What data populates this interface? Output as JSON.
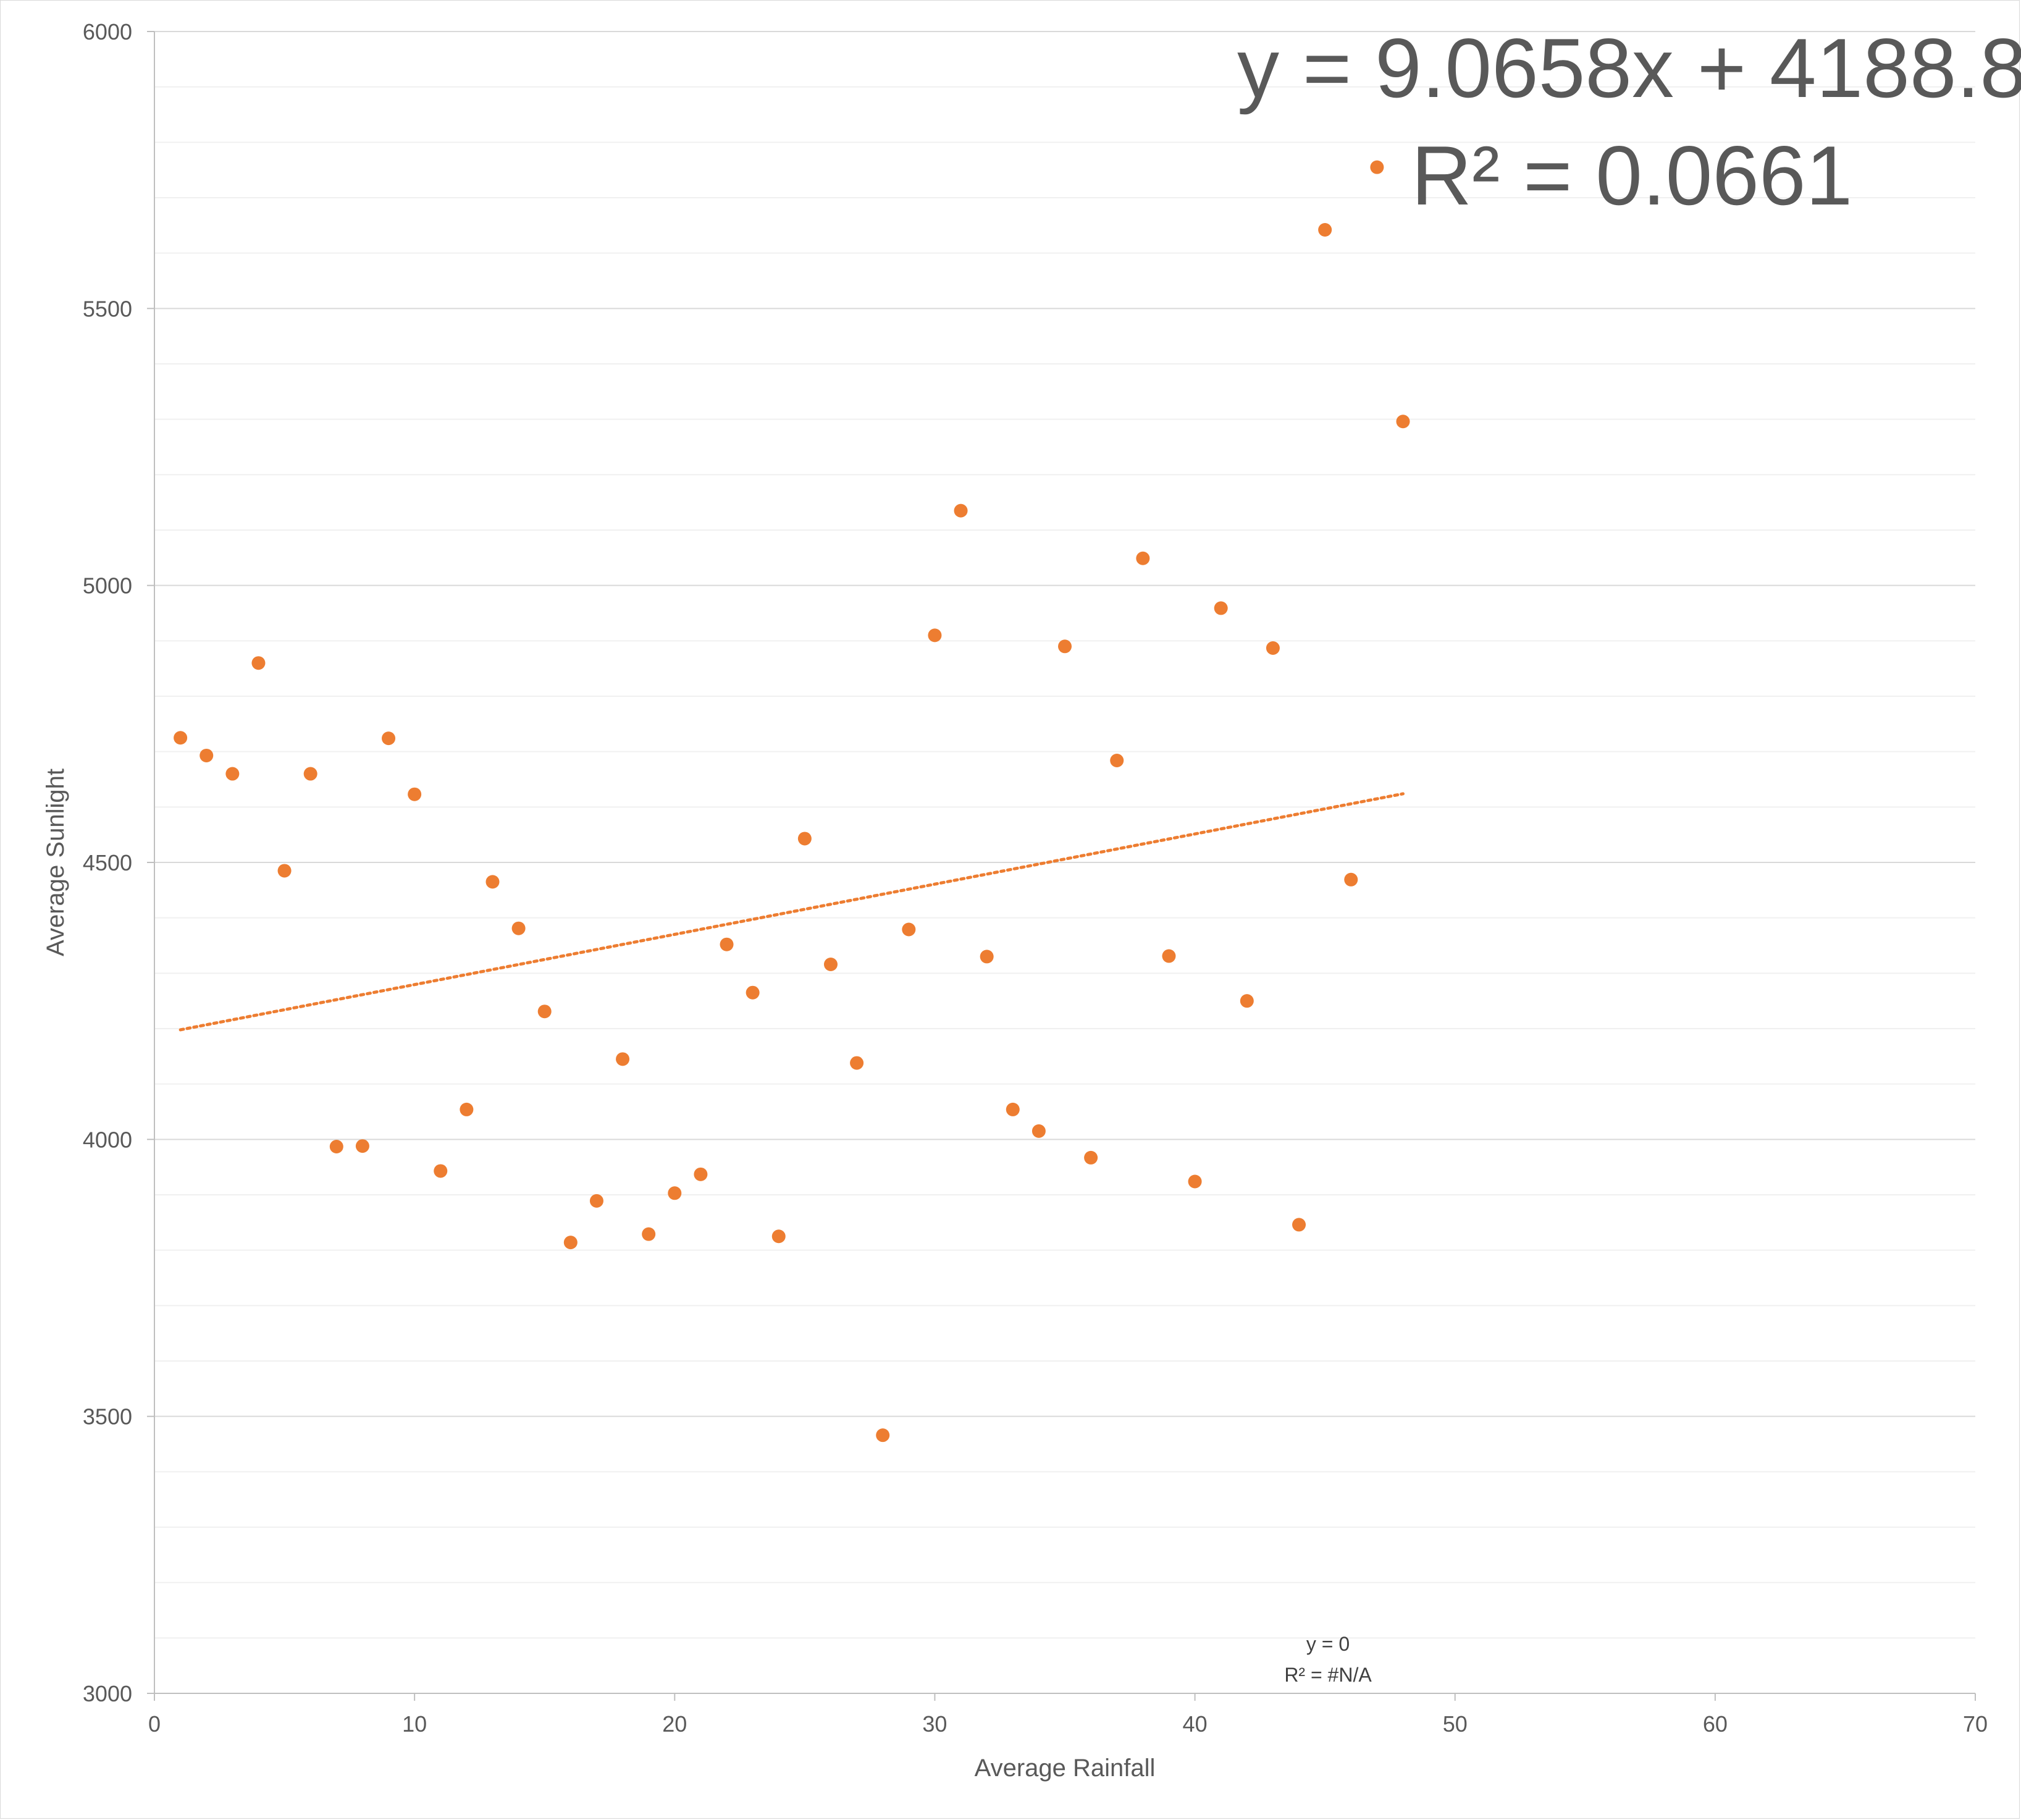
{
  "chart_data": {
    "type": "scatter",
    "title": "",
    "xlabel": "Average Rainfall",
    "ylabel": "Average Sunlight",
    "xlim": [
      0,
      70
    ],
    "ylim": [
      3000,
      6000
    ],
    "x_ticks": [
      "0",
      "10",
      "20",
      "30",
      "40",
      "50",
      "60",
      "70"
    ],
    "y_ticks": [
      "3000",
      "3500",
      "4000",
      "4500",
      "5000",
      "5500",
      "6000"
    ],
    "grid": {
      "major": true,
      "minor": true,
      "x": false
    },
    "marker_color": "#ED7D31",
    "trendline": {
      "type": "linear",
      "style": "dotted",
      "color": "#ED7D31",
      "slope": 9.0658,
      "intercept": 4188.8,
      "x_range": [
        1,
        48
      ],
      "equation": "y = 9.0658x + 4188.8",
      "r_squared": "R² = 0.0661"
    },
    "secondary_trendline_label": {
      "equation": "y = 0",
      "r_squared": "R² = #N/A"
    },
    "points": [
      {
        "x": 1,
        "y": 4725
      },
      {
        "x": 2,
        "y": 4693
      },
      {
        "x": 3,
        "y": 4660
      },
      {
        "x": 4,
        "y": 4860
      },
      {
        "x": 5,
        "y": 4485
      },
      {
        "x": 6,
        "y": 4660
      },
      {
        "x": 7,
        "y": 3987
      },
      {
        "x": 8,
        "y": 3988
      },
      {
        "x": 9,
        "y": 4724
      },
      {
        "x": 10,
        "y": 4623
      },
      {
        "x": 11,
        "y": 3943
      },
      {
        "x": 12,
        "y": 4054
      },
      {
        "x": 13,
        "y": 4465
      },
      {
        "x": 14,
        "y": 4381
      },
      {
        "x": 15,
        "y": 4231
      },
      {
        "x": 16,
        "y": 3814
      },
      {
        "x": 17,
        "y": 3889
      },
      {
        "x": 18,
        "y": 4145
      },
      {
        "x": 19,
        "y": 3829
      },
      {
        "x": 20,
        "y": 3903
      },
      {
        "x": 21,
        "y": 3937
      },
      {
        "x": 22,
        "y": 4352
      },
      {
        "x": 23,
        "y": 4265
      },
      {
        "x": 24,
        "y": 3825
      },
      {
        "x": 25,
        "y": 4543
      },
      {
        "x": 26,
        "y": 4316
      },
      {
        "x": 27,
        "y": 4138
      },
      {
        "x": 28,
        "y": 3466
      },
      {
        "x": 29,
        "y": 4379
      },
      {
        "x": 30,
        "y": 4910
      },
      {
        "x": 31,
        "y": 5135
      },
      {
        "x": 32,
        "y": 4330
      },
      {
        "x": 33,
        "y": 4054
      },
      {
        "x": 34,
        "y": 4015
      },
      {
        "x": 35,
        "y": 4890
      },
      {
        "x": 36,
        "y": 3967
      },
      {
        "x": 37,
        "y": 4684
      },
      {
        "x": 38,
        "y": 5049
      },
      {
        "x": 39,
        "y": 4331
      },
      {
        "x": 40,
        "y": 3924
      },
      {
        "x": 41,
        "y": 4959
      },
      {
        "x": 42,
        "y": 4250
      },
      {
        "x": 43,
        "y": 4887
      },
      {
        "x": 44,
        "y": 3846
      },
      {
        "x": 45,
        "y": 5642
      },
      {
        "x": 46,
        "y": 4469
      },
      {
        "x": 47,
        "y": 5755
      },
      {
        "x": 48,
        "y": 5296
      }
    ]
  }
}
